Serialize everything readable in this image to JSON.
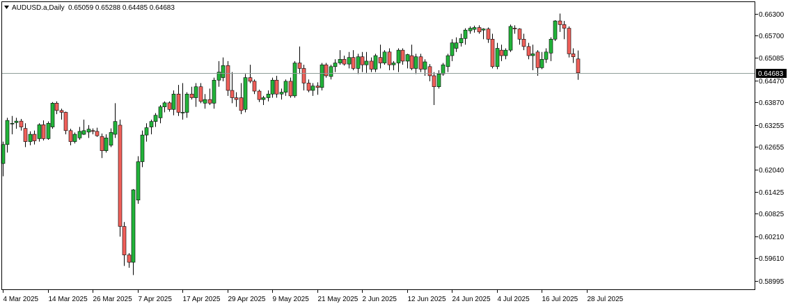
{
  "header": {
    "symbol_label": "AUDUSD.a,Daily",
    "ohlc_values": "0.65059 0.65288 0.64485 0.64683",
    "menu_icon": "triangle-down-icon"
  },
  "colors": {
    "bull": "#22b33a",
    "bear": "#f0605a",
    "wick": "#000000",
    "price_line": "#8f9d99",
    "frame": "#000000",
    "current_box": "#000000"
  },
  "chart_data": {
    "type": "candlestick",
    "symbol": "AUDUSD.a",
    "timeframe": "Daily",
    "ylim": [
      0.5876,
      0.66615
    ],
    "current_price": 0.64683,
    "current_price_label": "0.64683",
    "y_ticks": [
      {
        "value": 0.663,
        "label": "0.66300"
      },
      {
        "value": 0.657,
        "label": "0.65700"
      },
      {
        "value": 0.65085,
        "label": "0.65085"
      },
      {
        "value": 0.6447,
        "label": "0.64470"
      },
      {
        "value": 0.6387,
        "label": "0.63870"
      },
      {
        "value": 0.63255,
        "label": "0.63255"
      },
      {
        "value": 0.62655,
        "label": "0.62655"
      },
      {
        "value": 0.6204,
        "label": "0.62040"
      },
      {
        "value": 0.61425,
        "label": "0.61425"
      },
      {
        "value": 0.60825,
        "label": "0.60825"
      },
      {
        "value": 0.6021,
        "label": "0.60210"
      },
      {
        "value": 0.5961,
        "label": "0.59610"
      },
      {
        "value": 0.58995,
        "label": "0.58995"
      }
    ],
    "x_ticks": [
      {
        "index": 0,
        "label": "4 Mar 2025"
      },
      {
        "index": 10,
        "label": "14 Mar 2025"
      },
      {
        "index": 20,
        "label": "26 Mar 2025"
      },
      {
        "index": 30,
        "label": "7 Apr 2025"
      },
      {
        "index": 40,
        "label": "17 Apr 2025"
      },
      {
        "index": 50,
        "label": "29 Apr 2025"
      },
      {
        "index": 60,
        "label": "9 May 2025"
      },
      {
        "index": 70,
        "label": "21 May 2025"
      },
      {
        "index": 80,
        "label": "2 Jun 2025"
      },
      {
        "index": 90,
        "label": "12 Jun 2025"
      },
      {
        "index": 100,
        "label": "24 Jun 2025"
      },
      {
        "index": 110,
        "label": "4 Jul 2025"
      },
      {
        "index": 120,
        "label": "16 Jul 2025"
      },
      {
        "index": 130,
        "label": "28 Jul 2025"
      }
    ],
    "candles": [
      {
        "o": 0.622,
        "h": 0.628,
        "l": 0.6185,
        "c": 0.6272
      },
      {
        "o": 0.6272,
        "h": 0.6345,
        "l": 0.625,
        "c": 0.6338
      },
      {
        "o": 0.633,
        "h": 0.635,
        "l": 0.63,
        "c": 0.633
      },
      {
        "o": 0.6332,
        "h": 0.6345,
        "l": 0.6315,
        "c": 0.6336
      },
      {
        "o": 0.6336,
        "h": 0.6342,
        "l": 0.631,
        "c": 0.632
      },
      {
        "o": 0.6316,
        "h": 0.633,
        "l": 0.6265,
        "c": 0.628
      },
      {
        "o": 0.628,
        "h": 0.6308,
        "l": 0.627,
        "c": 0.63
      },
      {
        "o": 0.63,
        "h": 0.631,
        "l": 0.6272,
        "c": 0.6282
      },
      {
        "o": 0.6288,
        "h": 0.633,
        "l": 0.628,
        "c": 0.6326
      },
      {
        "o": 0.6326,
        "h": 0.6338,
        "l": 0.6283,
        "c": 0.6288
      },
      {
        "o": 0.6288,
        "h": 0.6335,
        "l": 0.6285,
        "c": 0.633
      },
      {
        "o": 0.632,
        "h": 0.6388,
        "l": 0.6315,
        "c": 0.6385
      },
      {
        "o": 0.6385,
        "h": 0.639,
        "l": 0.6355,
        "c": 0.6365
      },
      {
        "o": 0.6365,
        "h": 0.637,
        "l": 0.634,
        "c": 0.636
      },
      {
        "o": 0.636,
        "h": 0.6362,
        "l": 0.63,
        "c": 0.631
      },
      {
        "o": 0.631,
        "h": 0.6315,
        "l": 0.627,
        "c": 0.628
      },
      {
        "o": 0.628,
        "h": 0.6305,
        "l": 0.6275,
        "c": 0.63
      },
      {
        "o": 0.629,
        "h": 0.632,
        "l": 0.6285,
        "c": 0.6308
      },
      {
        "o": 0.63,
        "h": 0.634,
        "l": 0.6298,
        "c": 0.631
      },
      {
        "o": 0.6306,
        "h": 0.6325,
        "l": 0.629,
        "c": 0.6314
      },
      {
        "o": 0.631,
        "h": 0.6316,
        "l": 0.63,
        "c": 0.6308
      },
      {
        "o": 0.6308,
        "h": 0.6318,
        "l": 0.6293,
        "c": 0.6296
      },
      {
        "o": 0.6294,
        "h": 0.6302,
        "l": 0.6235,
        "c": 0.6255
      },
      {
        "o": 0.6255,
        "h": 0.63,
        "l": 0.625,
        "c": 0.629
      },
      {
        "o": 0.627,
        "h": 0.6316,
        "l": 0.6265,
        "c": 0.6305
      },
      {
        "o": 0.63,
        "h": 0.6385,
        "l": 0.629,
        "c": 0.6335
      },
      {
        "o": 0.6325,
        "h": 0.634,
        "l": 0.602,
        "c": 0.6048
      },
      {
        "o": 0.6048,
        "h": 0.606,
        "l": 0.594,
        "c": 0.597
      },
      {
        "o": 0.597,
        "h": 0.5975,
        "l": 0.5935,
        "c": 0.595
      },
      {
        "o": 0.595,
        "h": 0.615,
        "l": 0.5915,
        "c": 0.6148
      },
      {
        "o": 0.612,
        "h": 0.624,
        "l": 0.611,
        "c": 0.6225
      },
      {
        "o": 0.6225,
        "h": 0.631,
        "l": 0.621,
        "c": 0.6298
      },
      {
        "o": 0.6298,
        "h": 0.633,
        "l": 0.628,
        "c": 0.6318
      },
      {
        "o": 0.632,
        "h": 0.634,
        "l": 0.63,
        "c": 0.6335
      },
      {
        "o": 0.6335,
        "h": 0.6358,
        "l": 0.632,
        "c": 0.6352
      },
      {
        "o": 0.6345,
        "h": 0.638,
        "l": 0.633,
        "c": 0.6375
      },
      {
        "o": 0.6375,
        "h": 0.639,
        "l": 0.636,
        "c": 0.6386
      },
      {
        "o": 0.6386,
        "h": 0.639,
        "l": 0.6362,
        "c": 0.6368
      },
      {
        "o": 0.6368,
        "h": 0.642,
        "l": 0.6352,
        "c": 0.641
      },
      {
        "o": 0.641,
        "h": 0.6435,
        "l": 0.635,
        "c": 0.636
      },
      {
        "o": 0.636,
        "h": 0.644,
        "l": 0.634,
        "c": 0.636
      },
      {
        "o": 0.636,
        "h": 0.6415,
        "l": 0.6345,
        "c": 0.641
      },
      {
        "o": 0.641,
        "h": 0.643,
        "l": 0.6395,
        "c": 0.64
      },
      {
        "o": 0.64,
        "h": 0.644,
        "l": 0.6375,
        "c": 0.643
      },
      {
        "o": 0.643,
        "h": 0.644,
        "l": 0.6385,
        "c": 0.639
      },
      {
        "o": 0.6385,
        "h": 0.641,
        "l": 0.637,
        "c": 0.6395
      },
      {
        "o": 0.6395,
        "h": 0.6425,
        "l": 0.638,
        "c": 0.6385
      },
      {
        "o": 0.6385,
        "h": 0.6455,
        "l": 0.637,
        "c": 0.6448
      },
      {
        "o": 0.6448,
        "h": 0.65,
        "l": 0.643,
        "c": 0.647
      },
      {
        "o": 0.6455,
        "h": 0.651,
        "l": 0.6445,
        "c": 0.6488
      },
      {
        "o": 0.6488,
        "h": 0.65,
        "l": 0.6405,
        "c": 0.642
      },
      {
        "o": 0.642,
        "h": 0.647,
        "l": 0.6385,
        "c": 0.64
      },
      {
        "o": 0.64,
        "h": 0.6415,
        "l": 0.6375,
        "c": 0.6395
      },
      {
        "o": 0.64,
        "h": 0.644,
        "l": 0.6355,
        "c": 0.6365
      },
      {
        "o": 0.6368,
        "h": 0.6465,
        "l": 0.636,
        "c": 0.6455
      },
      {
        "o": 0.6455,
        "h": 0.649,
        "l": 0.644,
        "c": 0.6445
      },
      {
        "o": 0.6445,
        "h": 0.645,
        "l": 0.641,
        "c": 0.6418
      },
      {
        "o": 0.6418,
        "h": 0.6422,
        "l": 0.6388,
        "c": 0.6395
      },
      {
        "o": 0.6395,
        "h": 0.6405,
        "l": 0.638,
        "c": 0.64
      },
      {
        "o": 0.64,
        "h": 0.642,
        "l": 0.639,
        "c": 0.641
      },
      {
        "o": 0.641,
        "h": 0.6455,
        "l": 0.64,
        "c": 0.6448
      },
      {
        "o": 0.6448,
        "h": 0.646,
        "l": 0.64,
        "c": 0.641
      },
      {
        "o": 0.641,
        "h": 0.6425,
        "l": 0.6395,
        "c": 0.6415
      },
      {
        "o": 0.6415,
        "h": 0.645,
        "l": 0.6405,
        "c": 0.6445
      },
      {
        "o": 0.6445,
        "h": 0.6455,
        "l": 0.64,
        "c": 0.6405
      },
      {
        "o": 0.6405,
        "h": 0.65,
        "l": 0.64,
        "c": 0.6495
      },
      {
        "o": 0.6495,
        "h": 0.654,
        "l": 0.6465,
        "c": 0.648
      },
      {
        "o": 0.648,
        "h": 0.649,
        "l": 0.642,
        "c": 0.644
      },
      {
        "o": 0.644,
        "h": 0.645,
        "l": 0.6415,
        "c": 0.642
      },
      {
        "o": 0.642,
        "h": 0.644,
        "l": 0.6405,
        "c": 0.6432
      },
      {
        "o": 0.6432,
        "h": 0.6442,
        "l": 0.6408,
        "c": 0.6428
      },
      {
        "o": 0.6428,
        "h": 0.6495,
        "l": 0.642,
        "c": 0.649
      },
      {
        "o": 0.649,
        "h": 0.6495,
        "l": 0.6455,
        "c": 0.646
      },
      {
        "o": 0.6458,
        "h": 0.649,
        "l": 0.645,
        "c": 0.6485
      },
      {
        "o": 0.6485,
        "h": 0.6505,
        "l": 0.647,
        "c": 0.6495
      },
      {
        "o": 0.6495,
        "h": 0.653,
        "l": 0.649,
        "c": 0.6505
      },
      {
        "o": 0.6505,
        "h": 0.6515,
        "l": 0.6488,
        "c": 0.6492
      },
      {
        "o": 0.6492,
        "h": 0.6525,
        "l": 0.648,
        "c": 0.651
      },
      {
        "o": 0.651,
        "h": 0.653,
        "l": 0.6475,
        "c": 0.648
      },
      {
        "o": 0.648,
        "h": 0.652,
        "l": 0.6465,
        "c": 0.6512
      },
      {
        "o": 0.6512,
        "h": 0.6525,
        "l": 0.647,
        "c": 0.649
      },
      {
        "o": 0.649,
        "h": 0.6525,
        "l": 0.6468,
        "c": 0.65
      },
      {
        "o": 0.65,
        "h": 0.651,
        "l": 0.647,
        "c": 0.6478
      },
      {
        "o": 0.6478,
        "h": 0.652,
        "l": 0.647,
        "c": 0.6515
      },
      {
        "o": 0.651,
        "h": 0.6545,
        "l": 0.648,
        "c": 0.6495
      },
      {
        "o": 0.6495,
        "h": 0.653,
        "l": 0.649,
        "c": 0.6525
      },
      {
        "o": 0.6525,
        "h": 0.6535,
        "l": 0.6475,
        "c": 0.649
      },
      {
        "o": 0.649,
        "h": 0.65,
        "l": 0.6475,
        "c": 0.6495
      },
      {
        "o": 0.6495,
        "h": 0.6535,
        "l": 0.647,
        "c": 0.653
      },
      {
        "o": 0.653,
        "h": 0.6535,
        "l": 0.649,
        "c": 0.65
      },
      {
        "o": 0.65,
        "h": 0.652,
        "l": 0.648,
        "c": 0.6518
      },
      {
        "o": 0.6515,
        "h": 0.6545,
        "l": 0.6475,
        "c": 0.648
      },
      {
        "o": 0.648,
        "h": 0.652,
        "l": 0.6465,
        "c": 0.6512
      },
      {
        "o": 0.6512,
        "h": 0.652,
        "l": 0.647,
        "c": 0.6478
      },
      {
        "o": 0.6478,
        "h": 0.6505,
        "l": 0.646,
        "c": 0.6498
      },
      {
        "o": 0.6485,
        "h": 0.6492,
        "l": 0.6445,
        "c": 0.646
      },
      {
        "o": 0.646,
        "h": 0.647,
        "l": 0.638,
        "c": 0.643
      },
      {
        "o": 0.643,
        "h": 0.6475,
        "l": 0.6425,
        "c": 0.6465
      },
      {
        "o": 0.6465,
        "h": 0.6495,
        "l": 0.646,
        "c": 0.649
      },
      {
        "o": 0.6485,
        "h": 0.652,
        "l": 0.647,
        "c": 0.6515
      },
      {
        "o": 0.6515,
        "h": 0.656,
        "l": 0.65,
        "c": 0.655
      },
      {
        "o": 0.6535,
        "h": 0.6565,
        "l": 0.6525,
        "c": 0.655
      },
      {
        "o": 0.655,
        "h": 0.6575,
        "l": 0.654,
        "c": 0.6562
      },
      {
        "o": 0.6562,
        "h": 0.659,
        "l": 0.6545,
        "c": 0.6585
      },
      {
        "o": 0.6583,
        "h": 0.6595,
        "l": 0.6575,
        "c": 0.659
      },
      {
        "o": 0.6587,
        "h": 0.6597,
        "l": 0.6578,
        "c": 0.6592
      },
      {
        "o": 0.6592,
        "h": 0.6598,
        "l": 0.6575,
        "c": 0.658
      },
      {
        "o": 0.6585,
        "h": 0.659,
        "l": 0.656,
        "c": 0.6588
      },
      {
        "o": 0.6588,
        "h": 0.6592,
        "l": 0.655,
        "c": 0.656
      },
      {
        "o": 0.656,
        "h": 0.6575,
        "l": 0.648,
        "c": 0.6485
      },
      {
        "o": 0.6485,
        "h": 0.655,
        "l": 0.6478,
        "c": 0.6535
      },
      {
        "o": 0.653,
        "h": 0.6545,
        "l": 0.65,
        "c": 0.6515
      },
      {
        "o": 0.6515,
        "h": 0.6535,
        "l": 0.6505,
        "c": 0.653
      },
      {
        "o": 0.653,
        "h": 0.66,
        "l": 0.6525,
        "c": 0.6595
      },
      {
        "o": 0.659,
        "h": 0.6598,
        "l": 0.6575,
        "c": 0.6588
      },
      {
        "o": 0.6588,
        "h": 0.659,
        "l": 0.6545,
        "c": 0.656
      },
      {
        "o": 0.656,
        "h": 0.6575,
        "l": 0.653,
        "c": 0.654
      },
      {
        "o": 0.654,
        "h": 0.655,
        "l": 0.6505,
        "c": 0.6515
      },
      {
        "o": 0.6515,
        "h": 0.6545,
        "l": 0.6475,
        "c": 0.652
      },
      {
        "o": 0.6525,
        "h": 0.653,
        "l": 0.646,
        "c": 0.6482
      },
      {
        "o": 0.6482,
        "h": 0.6525,
        "l": 0.6478,
        "c": 0.6505
      },
      {
        "o": 0.6505,
        "h": 0.6535,
        "l": 0.6495,
        "c": 0.6525
      },
      {
        "o": 0.6522,
        "h": 0.6565,
        "l": 0.65,
        "c": 0.656
      },
      {
        "o": 0.656,
        "h": 0.6612,
        "l": 0.6555,
        "c": 0.661
      },
      {
        "o": 0.661,
        "h": 0.663,
        "l": 0.658,
        "c": 0.66
      },
      {
        "o": 0.66,
        "h": 0.661,
        "l": 0.656,
        "c": 0.659
      },
      {
        "o": 0.659,
        "h": 0.6595,
        "l": 0.651,
        "c": 0.652
      },
      {
        "o": 0.652,
        "h": 0.6535,
        "l": 0.6495,
        "c": 0.6512
      },
      {
        "o": 0.6506,
        "h": 0.6529,
        "l": 0.6449,
        "c": 0.6468
      }
    ]
  }
}
